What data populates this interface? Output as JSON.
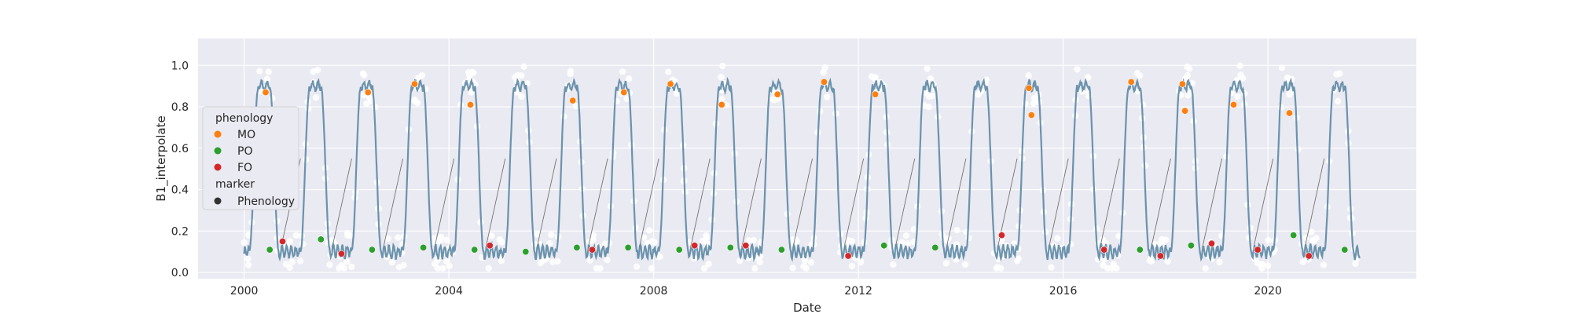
{
  "chart_data": {
    "type": "scatter",
    "xlabel": "Date",
    "ylabel": "B1_interpolate",
    "xlim": [
      1999.1,
      2022.9
    ],
    "ylim": [
      -0.03,
      1.13
    ],
    "x_ticks": [
      "2000",
      "2004",
      "2008",
      "2012",
      "2016",
      "2020"
    ],
    "y_ticks": [
      "0.0",
      "0.2",
      "0.4",
      "0.6",
      "0.8",
      "1.0"
    ],
    "grid": true,
    "background": "#eaeaf2",
    "legend": {
      "placement": "left",
      "title1": "phenology",
      "items": [
        {
          "label": "MO",
          "color": "#ff7f0e"
        },
        {
          "label": "PO",
          "color": "#2ca02c"
        },
        {
          "label": "FO",
          "color": "#d62728"
        }
      ],
      "title2": "marker",
      "marker_item": {
        "label": "Phenology",
        "color": "#333333"
      }
    },
    "series": [
      {
        "name": "MO",
        "color": "#ff7f0e",
        "points": [
          [
            2000.42,
            0.87
          ],
          [
            2002.42,
            0.87
          ],
          [
            2003.33,
            0.91
          ],
          [
            2004.42,
            0.81
          ],
          [
            2006.42,
            0.83
          ],
          [
            2007.42,
            0.87
          ],
          [
            2008.33,
            0.91
          ],
          [
            2009.33,
            0.81
          ],
          [
            2010.42,
            0.86
          ],
          [
            2011.33,
            0.92
          ],
          [
            2012.33,
            0.86
          ],
          [
            2015.33,
            0.89
          ],
          [
            2015.38,
            0.76
          ],
          [
            2017.33,
            0.92
          ],
          [
            2018.33,
            0.91
          ],
          [
            2018.38,
            0.78
          ],
          [
            2019.33,
            0.81
          ],
          [
            2020.42,
            0.77
          ]
        ]
      },
      {
        "name": "PO",
        "color": "#2ca02c",
        "points": [
          [
            2000.5,
            0.11
          ],
          [
            2001.5,
            0.16
          ],
          [
            2002.5,
            0.11
          ],
          [
            2003.5,
            0.12
          ],
          [
            2004.5,
            0.11
          ],
          [
            2005.5,
            0.1
          ],
          [
            2006.5,
            0.12
          ],
          [
            2007.5,
            0.12
          ],
          [
            2008.5,
            0.11
          ],
          [
            2009.5,
            0.12
          ],
          [
            2010.5,
            0.11
          ],
          [
            2012.5,
            0.13
          ],
          [
            2013.5,
            0.12
          ],
          [
            2017.5,
            0.11
          ],
          [
            2018.5,
            0.13
          ],
          [
            2020.5,
            0.18
          ],
          [
            2021.5,
            0.11
          ]
        ]
      },
      {
        "name": "FO",
        "color": "#d62728",
        "points": [
          [
            2000.75,
            0.15
          ],
          [
            2001.9,
            0.09
          ],
          [
            2004.8,
            0.13
          ],
          [
            2006.8,
            0.11
          ],
          [
            2008.8,
            0.13
          ],
          [
            2009.8,
            0.13
          ],
          [
            2011.8,
            0.08
          ],
          [
            2014.8,
            0.18
          ],
          [
            2016.8,
            0.11
          ],
          [
            2017.9,
            0.08
          ],
          [
            2018.9,
            0.14
          ],
          [
            2019.8,
            0.11
          ],
          [
            2020.8,
            0.08
          ]
        ]
      }
    ]
  }
}
